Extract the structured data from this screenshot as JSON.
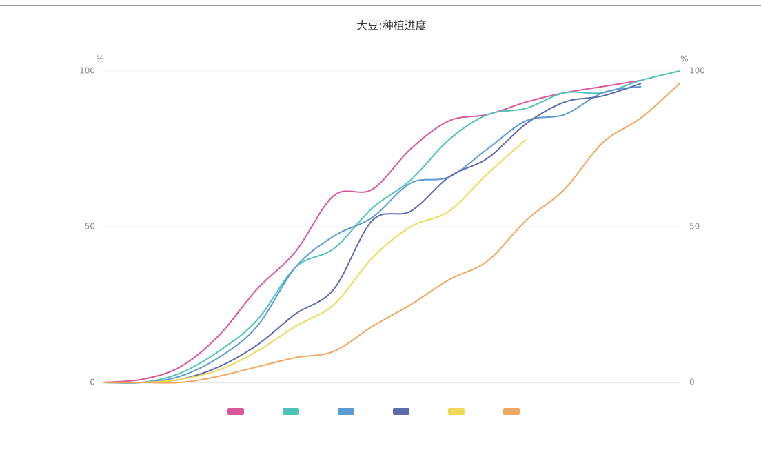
{
  "chart_data": {
    "type": "line",
    "title": "大豆:种植进度",
    "y_unit": "%",
    "y2_unit": "%",
    "categories": [
      null,
      null,
      null,
      null,
      null,
      null,
      null,
      null,
      null,
      null,
      null,
      null,
      null,
      null,
      null,
      null
    ],
    "ylim": [
      0,
      100
    ],
    "yticks": [
      0,
      50,
      100
    ],
    "y2lim": [
      0,
      100
    ],
    "y2ticks": [
      0,
      50,
      100
    ],
    "grid": true,
    "series": [
      {
        "color": "#d9579a",
        "values": [
          0,
          1,
          5,
          15,
          30,
          42,
          60,
          62,
          75,
          84,
          86,
          90,
          93,
          95,
          97,
          null
        ]
      },
      {
        "color": "#4fc3b9",
        "values": [
          0,
          0,
          3,
          10,
          20,
          37,
          43,
          56,
          65,
          78,
          86,
          88,
          93,
          93,
          97,
          100
        ]
      },
      {
        "color": "#5b9bd5",
        "values": [
          0,
          0,
          2,
          8,
          18,
          37,
          47,
          53,
          64,
          66,
          75,
          84,
          86,
          93,
          95,
          null
        ]
      },
      {
        "color": "#5c6bab",
        "values": [
          0,
          0,
          1,
          5,
          12,
          22,
          30,
          52,
          55,
          66,
          72,
          83,
          90,
          92,
          96,
          null
        ]
      },
      {
        "color": "#f0d95a",
        "values": [
          0,
          0,
          1,
          4,
          10,
          18,
          25,
          40,
          50,
          55,
          67,
          78,
          null,
          null,
          null,
          null
        ]
      },
      {
        "color": "#f0a860",
        "values": [
          0,
          0,
          0,
          2,
          5,
          8,
          10,
          18,
          25,
          33,
          39,
          52,
          62,
          77,
          85,
          96
        ]
      }
    ]
  }
}
